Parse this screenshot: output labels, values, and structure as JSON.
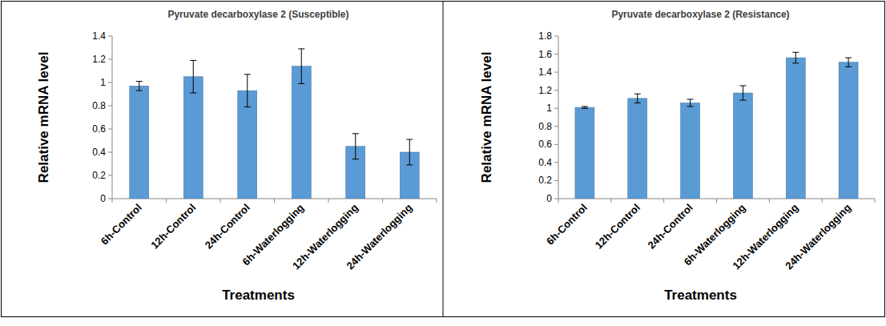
{
  "chart_data": [
    {
      "type": "bar",
      "title": "Pyruvate decarboxylase 2 (Susceptible)",
      "x_label": "Treatments",
      "y_label": "Relative mRNA level",
      "categories": [
        "6h-Control",
        "12h-Control",
        "24h-Control",
        "6h-Waterlogging",
        "12h-Waterlogging",
        "24h-Waterlogging"
      ],
      "values": [
        0.97,
        1.05,
        0.93,
        1.14,
        0.45,
        0.4
      ],
      "errors": [
        0.04,
        0.14,
        0.14,
        0.15,
        0.11,
        0.11
      ],
      "color": "#5b9bd5",
      "ylim": [
        0,
        1.4
      ],
      "yticks": [
        0,
        0.2,
        0.4,
        0.6,
        0.8,
        1,
        1.2,
        1.4
      ],
      "grid": false
    },
    {
      "type": "bar",
      "title": "Pyruvate decarboxylase 2 (Resistance)",
      "x_label": "Treatments",
      "y_label": "Relative mRNA level",
      "categories": [
        "6h-Control",
        "12h-Control",
        "24h-Control",
        "6h-Waterlogging",
        "12h-Waterlogging",
        "24h-Waterlogging"
      ],
      "values": [
        1.01,
        1.11,
        1.06,
        1.17,
        1.56,
        1.51
      ],
      "errors": [
        0.01,
        0.05,
        0.04,
        0.08,
        0.06,
        0.05
      ],
      "color": "#5b9bd5",
      "ylim": [
        0,
        1.8
      ],
      "yticks": [
        0,
        0.2,
        0.4,
        0.6,
        0.8,
        1,
        1.2,
        1.4,
        1.6,
        1.8
      ],
      "grid": false
    }
  ]
}
